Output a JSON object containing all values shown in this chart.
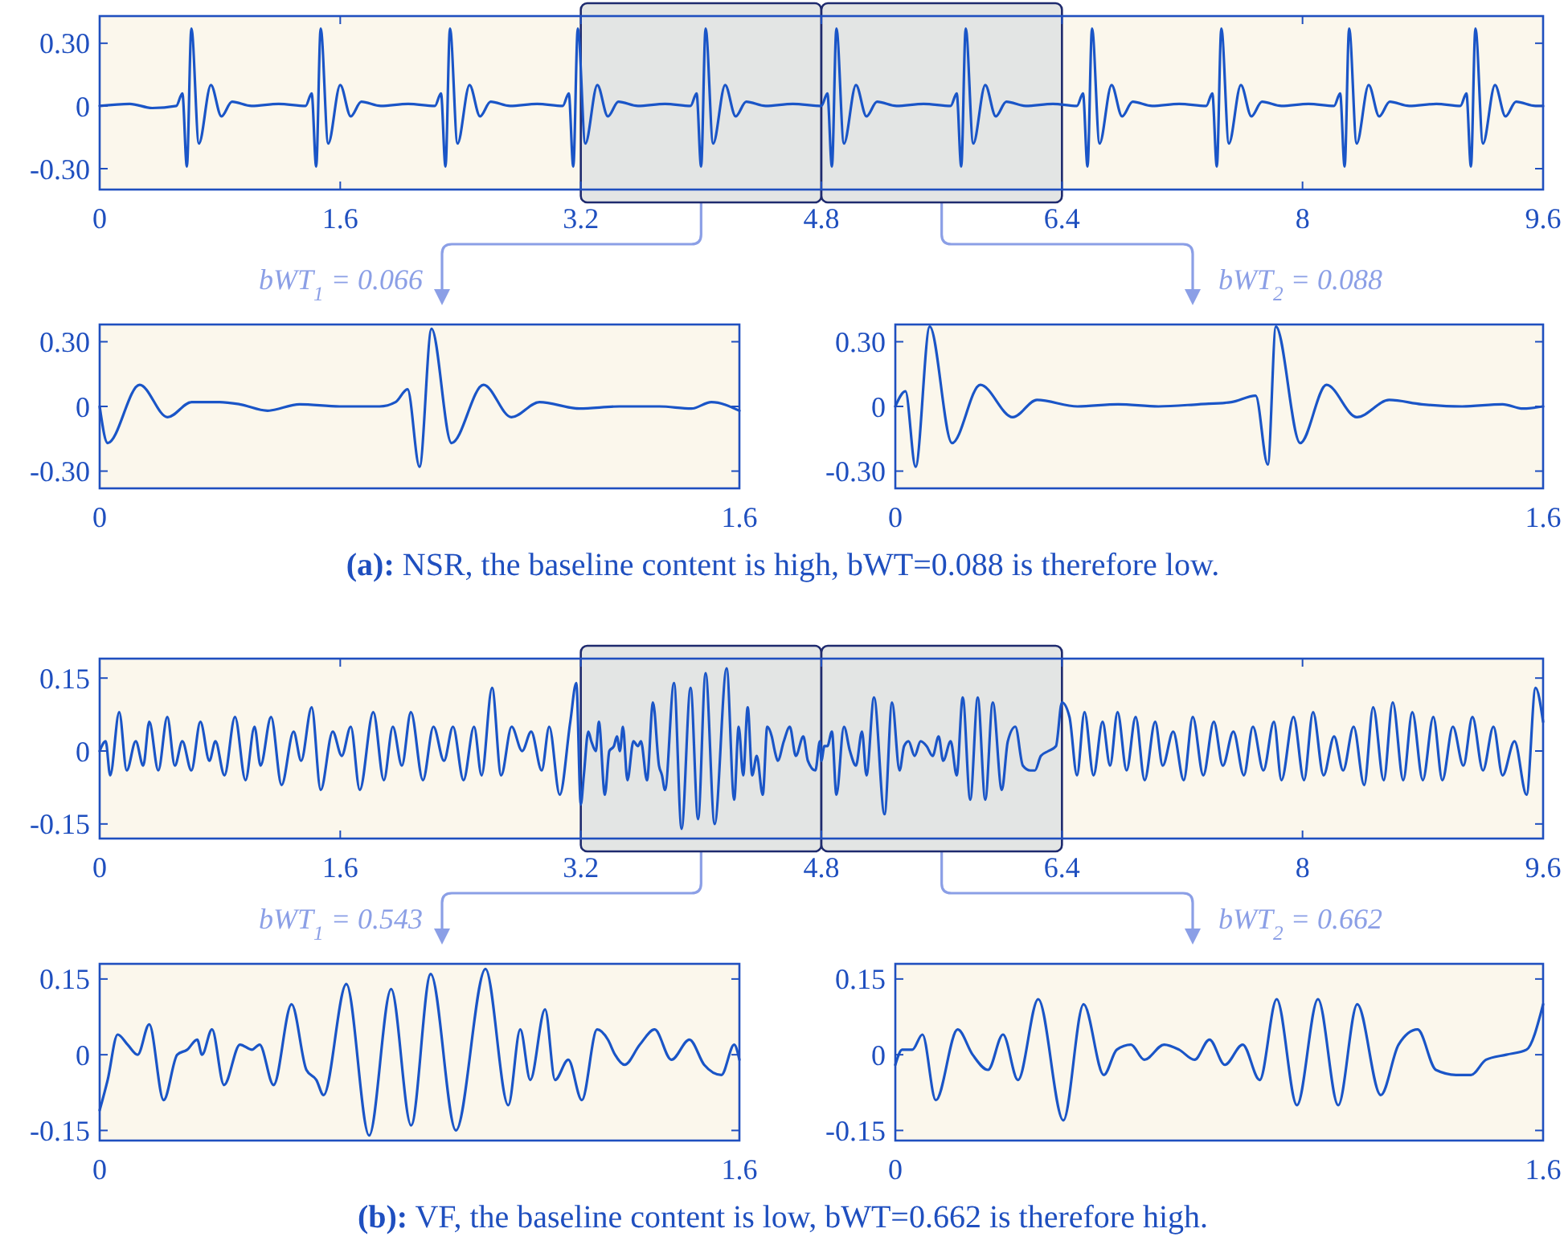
{
  "chart_data": [
    {
      "type": "line",
      "xlim": [
        0,
        9.6
      ],
      "ylim": [
        -0.4,
        0.43
      ],
      "xticks": [
        0,
        1.6,
        3.2,
        4.8,
        6.4,
        8,
        9.6
      ],
      "yticks": [
        {
          "value": 0.3,
          "label": "0.30"
        },
        {
          "value": 0,
          "label": "0"
        },
        {
          "value": -0.3,
          "label": "-0.30"
        }
      ],
      "series": [
        {
          "color": "#1a55c7",
          "x": [
            0,
            0.2,
            0.35,
            0.51,
            0.55,
            0.58,
            0.61,
            0.66,
            0.74,
            0.81,
            0.88,
            1.01,
            1.19,
            1.37,
            1.41,
            1.44,
            1.47,
            1.52,
            1.6,
            1.67,
            1.74,
            1.87,
            2.05,
            2.23,
            2.27,
            2.3,
            2.33,
            2.38,
            2.46,
            2.53,
            2.6,
            2.73,
            2.91,
            3.08,
            3.12,
            3.15,
            3.18,
            3.23,
            3.31,
            3.38,
            3.45,
            3.58,
            3.76,
            3.93,
            3.97,
            4,
            4.03,
            4.08,
            4.16,
            4.23,
            4.3,
            4.43,
            4.61,
            4.8,
            4.84,
            4.87,
            4.9,
            4.95,
            5.03,
            5.1,
            5.17,
            5.3,
            5.48,
            5.66,
            5.7,
            5.73,
            5.76,
            5.81,
            5.89,
            5.96,
            6.03,
            6.16,
            6.34,
            6.5,
            6.54,
            6.57,
            6.6,
            6.65,
            6.73,
            6.8,
            6.87,
            7,
            7.18,
            7.36,
            7.4,
            7.43,
            7.46,
            7.51,
            7.59,
            7.66,
            7.73,
            7.86,
            8.04,
            8.21,
            8.25,
            8.28,
            8.31,
            8.36,
            8.44,
            8.51,
            8.58,
            8.71,
            8.89,
            9.05,
            9.09,
            9.12,
            9.15,
            9.2,
            9.28,
            9.35,
            9.42,
            9.55,
            9.6
          ],
          "values": [
            0,
            0.01,
            -0.01,
            0,
            0.06,
            -0.29,
            0.37,
            -0.18,
            0.1,
            -0.05,
            0.02,
            0,
            0.01,
            0,
            0.06,
            -0.29,
            0.37,
            -0.18,
            0.1,
            -0.05,
            0.02,
            0,
            0.01,
            0,
            0.06,
            -0.29,
            0.37,
            -0.18,
            0.1,
            -0.05,
            0.02,
            0,
            0.01,
            0,
            0.06,
            -0.29,
            0.37,
            -0.18,
            0.1,
            -0.05,
            0.02,
            0,
            0.01,
            0,
            0.06,
            -0.29,
            0.37,
            -0.18,
            0.1,
            -0.05,
            0.02,
            0,
            0.01,
            0,
            0.06,
            -0.29,
            0.37,
            -0.18,
            0.1,
            -0.05,
            0.02,
            0,
            0.01,
            0,
            0.06,
            -0.29,
            0.37,
            -0.18,
            0.1,
            -0.05,
            0.02,
            0,
            0.01,
            0,
            0.06,
            -0.29,
            0.37,
            -0.18,
            0.1,
            -0.05,
            0.02,
            0,
            0.01,
            0,
            0.06,
            -0.29,
            0.37,
            -0.18,
            0.1,
            -0.05,
            0.02,
            0,
            0.01,
            0,
            0.06,
            -0.29,
            0.37,
            -0.18,
            0.1,
            -0.05,
            0.02,
            0,
            0.01,
            0,
            0.06,
            -0.29,
            0.37,
            -0.18,
            0.1,
            -0.05,
            0.02,
            0,
            0
          ]
        }
      ],
      "bands": [
        {
          "axis": "x",
          "from": 3.2,
          "to": 4.8,
          "color": "#e3e5e4"
        },
        {
          "axis": "x",
          "from": 4.8,
          "to": 6.4,
          "color": "#e3e5e4"
        }
      ]
    },
    {
      "type": "line",
      "title": "bWT$_{1}$ = 0.066",
      "xlim": [
        0,
        1.6
      ],
      "ylim": [
        -0.38,
        0.38
      ],
      "xticks": [
        0,
        1.6
      ],
      "yticks": [
        {
          "value": 0.3,
          "label": "0.30"
        },
        {
          "value": 0,
          "label": "0"
        },
        {
          "value": -0.3,
          "label": "-0.30"
        }
      ],
      "series": [
        {
          "color": "#1a55c7",
          "x": [
            0,
            0.02,
            0.1,
            0.17,
            0.23,
            0.3,
            0.35,
            0.42,
            0.5,
            0.6,
            0.7,
            0.74,
            0.77,
            0.8,
            0.83,
            0.88,
            0.96,
            1.03,
            1.1,
            1.2,
            1.3,
            1.4,
            1.48,
            1.53,
            1.6
          ],
          "values": [
            0,
            -0.17,
            0.1,
            -0.05,
            0.02,
            0.02,
            0.01,
            -0.02,
            0.01,
            0,
            0,
            0.02,
            0.08,
            -0.28,
            0.36,
            -0.17,
            0.1,
            -0.05,
            0.02,
            -0.01,
            0,
            0,
            -0.01,
            0.02,
            -0.02
          ]
        }
      ]
    },
    {
      "type": "line",
      "title": "bWT$_{2}$ = 0.088",
      "xlim": [
        0,
        1.6
      ],
      "ylim": [
        -0.38,
        0.38
      ],
      "xticks": [
        0,
        1.6
      ],
      "yticks": [
        {
          "value": 0.3,
          "label": "0.30"
        },
        {
          "value": 0,
          "label": "0"
        },
        {
          "value": -0.3,
          "label": "-0.30"
        }
      ],
      "annotations": [
        "(a): NSR, the baseline content is high, bWT=0.088 is therefore low."
      ],
      "series": [
        {
          "color": "#1a55c7",
          "x": [
            0,
            0.025,
            0.05,
            0.085,
            0.14,
            0.21,
            0.29,
            0.35,
            0.45,
            0.55,
            0.65,
            0.75,
            0.83,
            0.89,
            0.92,
            0.94,
            1,
            1.065,
            1.14,
            1.22,
            1.3,
            1.4,
            1.5,
            1.55,
            1.6
          ],
          "values": [
            0,
            0.07,
            -0.28,
            0.37,
            -0.17,
            0.1,
            -0.05,
            0.03,
            0,
            0.01,
            0,
            0.01,
            0.02,
            0.05,
            -0.27,
            0.37,
            -0.17,
            0.1,
            -0.05,
            0.03,
            0.01,
            0,
            0.01,
            -0.01,
            0
          ]
        }
      ]
    },
    {
      "type": "line",
      "xlim": [
        0,
        9.6
      ],
      "ylim": [
        -0.18,
        0.19
      ],
      "xticks": [
        0,
        1.6,
        3.2,
        4.8,
        6.4,
        8,
        9.6
      ],
      "yticks": [
        {
          "value": 0.15,
          "label": "0.15"
        },
        {
          "value": 0,
          "label": "0"
        },
        {
          "value": -0.15,
          "label": "-0.15"
        }
      ],
      "series": [
        {
          "color": "#1a55c7",
          "x": [
            0,
            0.04,
            0.07,
            0.13,
            0.18,
            0.24,
            0.29,
            0.33,
            0.39,
            0.45,
            0.5,
            0.55,
            0.61,
            0.67,
            0.73,
            0.77,
            0.83,
            0.9,
            0.97,
            1.03,
            1.07,
            1.14,
            1.21,
            1.29,
            1.34,
            1.41,
            1.47,
            1.55,
            1.61,
            1.67,
            1.73,
            1.82,
            1.89,
            1.95,
            2.01,
            2.07,
            2.15,
            2.22,
            2.29,
            2.35,
            2.42,
            2.49,
            2.54,
            2.61,
            2.67,
            2.74,
            2.81,
            2.87,
            2.94,
            2.99,
            3.06,
            3.13,
            3.17,
            3.2,
            3.22,
            3.25,
            3.27,
            3.3,
            3.32,
            3.36,
            3.39,
            3.42,
            3.44,
            3.46,
            3.48,
            3.51,
            3.55,
            3.58,
            3.6,
            3.64,
            3.68,
            3.72,
            3.74,
            3.76,
            3.82,
            3.87,
            3.93,
            3.98,
            4.03,
            4.09,
            4.17,
            4.22,
            4.25,
            4.28,
            4.31,
            4.34,
            4.37,
            4.41,
            4.44,
            4.47,
            4.49,
            4.51,
            4.55,
            4.59,
            4.63,
            4.68,
            4.71,
            4.76,
            4.79,
            4.8,
            4.82,
            4.84,
            4.87,
            4.9,
            4.95,
            4.99,
            5.03,
            5.07,
            5.1,
            5.15,
            5.22,
            5.27,
            5.32,
            5.35,
            5.38,
            5.42,
            5.46,
            5.5,
            5.54,
            5.58,
            5.61,
            5.66,
            5.7,
            5.74,
            5.79,
            5.84,
            5.89,
            5.94,
            6,
            6.04,
            6.09,
            6.14,
            6.19,
            6.22,
            6.26,
            6.31,
            6.36,
            6.4,
            6.45,
            6.5,
            6.55,
            6.61,
            6.67,
            6.72,
            6.77,
            6.83,
            6.89,
            6.95,
            7.02,
            7.07,
            7.14,
            7.21,
            7.27,
            7.34,
            7.41,
            7.47,
            7.54,
            7.61,
            7.67,
            7.74,
            7.81,
            7.86,
            7.94,
            8.01,
            8.07,
            8.14,
            8.21,
            8.27,
            8.34,
            8.41,
            8.47,
            8.54,
            8.6,
            8.67,
            8.73,
            8.8,
            8.87,
            8.93,
            9,
            9.07,
            9.13,
            9.2,
            9.27,
            9.33,
            9.41,
            9.49,
            9.55,
            9.6
          ],
          "values": [
            0,
            0.02,
            -0.05,
            0.08,
            -0.04,
            0.02,
            -0.03,
            0.06,
            -0.04,
            0.07,
            -0.03,
            0.02,
            -0.04,
            0.06,
            -0.02,
            0.02,
            -0.05,
            0.07,
            -0.06,
            0.05,
            -0.03,
            0.07,
            -0.07,
            0.04,
            -0.02,
            0.09,
            -0.08,
            0.04,
            -0.01,
            0.05,
            -0.08,
            0.08,
            -0.06,
            0.05,
            -0.03,
            0.08,
            -0.06,
            0.05,
            -0.02,
            0.05,
            -0.06,
            0.05,
            -0.05,
            0.13,
            -0.05,
            0.05,
            0,
            0.04,
            -0.04,
            0.05,
            -0.09,
            0.06,
            0.14,
            -0.11,
            -0.05,
            0.04,
            0.02,
            0,
            0.06,
            -0.09,
            0,
            0.01,
            0.03,
            0,
            0.05,
            -0.06,
            0.02,
            0.01,
            0.02,
            -0.06,
            0.1,
            -0.03,
            -0.05,
            -0.08,
            0.14,
            -0.16,
            0.13,
            -0.14,
            0.16,
            -0.15,
            0.17,
            -0.1,
            0.05,
            -0.05,
            0.09,
            -0.05,
            -0.01,
            -0.09,
            0.05,
            0.03,
            0,
            -0.02,
            0.02,
            0.05,
            -0.01,
            0.03,
            -0.02,
            -0.04,
            0.02,
            -0.02,
            0.01,
            0.01,
            0.04,
            -0.09,
            0.05,
            0,
            -0.03,
            0.04,
            -0.05,
            0.11,
            -0.13,
            0.1,
            -0.04,
            0.01,
            0.02,
            -0.01,
            0.02,
            0.01,
            -0.01,
            0.03,
            -0.02,
            0.02,
            -0.05,
            0.11,
            -0.1,
            0.11,
            -0.1,
            0.1,
            -0.08,
            0.02,
            0.05,
            -0.03,
            -0.04,
            -0.04,
            -0.01,
            0,
            0.01,
            0.1,
            0.07,
            -0.05,
            0.08,
            -0.05,
            0.06,
            -0.03,
            0.08,
            -0.04,
            0.07,
            -0.06,
            0.06,
            -0.03,
            0.04,
            -0.06,
            0.07,
            -0.05,
            0.06,
            -0.03,
            0.04,
            -0.05,
            0.05,
            -0.04,
            0.06,
            -0.06,
            0.07,
            -0.06,
            0.08,
            -0.05,
            0.03,
            -0.04,
            0.05,
            -0.07,
            0.09,
            -0.06,
            0.1,
            -0.06,
            0.08,
            -0.06,
            0.07,
            -0.06,
            0.05,
            -0.03,
            0.07,
            -0.04,
            0.05,
            -0.05,
            0.02,
            -0.09,
            0.13,
            0.06
          ]
        }
      ],
      "bands": [
        {
          "axis": "x",
          "from": 3.2,
          "to": 4.8,
          "color": "#e3e5e4"
        },
        {
          "axis": "x",
          "from": 4.8,
          "to": 6.4,
          "color": "#e3e5e4"
        }
      ]
    },
    {
      "type": "line",
      "title": "bWT$_{1}$ = 0.543",
      "xlim": [
        0,
        1.6
      ],
      "ylim": [
        -0.17,
        0.18
      ],
      "xticks": [
        0,
        1.6
      ],
      "yticks": [
        {
          "value": 0.15,
          "label": "0.15"
        },
        {
          "value": 0,
          "label": "0"
        },
        {
          "value": -0.15,
          "label": "-0.15"
        }
      ],
      "series": [
        {
          "color": "#1a55c7",
          "x": [
            0,
            0.02,
            0.045,
            0.07,
            0.095,
            0.124,
            0.16,
            0.194,
            0.219,
            0.244,
            0.256,
            0.281,
            0.311,
            0.351,
            0.381,
            0.4,
            0.435,
            0.48,
            0.517,
            0.542,
            0.56,
            0.617,
            0.674,
            0.729,
            0.779,
            0.828,
            0.891,
            0.965,
            1.022,
            1.052,
            1.077,
            1.114,
            1.139,
            1.172,
            1.206,
            1.244,
            1.271,
            1.289,
            1.313,
            1.351,
            1.388,
            1.43,
            1.475,
            1.512,
            1.555,
            1.587,
            1.6
          ],
          "values": [
            -0.11,
            -0.05,
            0.04,
            0.02,
            0,
            0.06,
            -0.09,
            0,
            0.01,
            0.03,
            0,
            0.05,
            -0.06,
            0.02,
            0.01,
            0.02,
            -0.06,
            0.1,
            -0.03,
            -0.05,
            -0.08,
            0.14,
            -0.16,
            0.13,
            -0.14,
            0.16,
            -0.15,
            0.17,
            -0.1,
            0.05,
            -0.05,
            0.09,
            -0.05,
            -0.01,
            -0.09,
            0.05,
            0.03,
            0,
            -0.02,
            0.02,
            0.05,
            -0.01,
            0.03,
            -0.02,
            -0.04,
            0.02,
            -0.01
          ]
        }
      ]
    },
    {
      "type": "line",
      "title": "bWT$_{2}$ = 0.662",
      "xlim": [
        0,
        1.6
      ],
      "ylim": [
        -0.17,
        0.18
      ],
      "xticks": [
        0,
        1.6
      ],
      "yticks": [
        {
          "value": 0.15,
          "label": "0.15"
        },
        {
          "value": 0,
          "label": "0"
        },
        {
          "value": -0.15,
          "label": "-0.15"
        }
      ],
      "annotations": [
        "(b): VF, the baseline content is low, bWT=0.662 is therefore high."
      ],
      "series": [
        {
          "color": "#1a55c7",
          "x": [
            0,
            0.017,
            0.042,
            0.067,
            0.1,
            0.154,
            0.191,
            0.229,
            0.266,
            0.303,
            0.353,
            0.415,
            0.465,
            0.515,
            0.547,
            0.582,
            0.615,
            0.664,
            0.701,
            0.739,
            0.776,
            0.814,
            0.858,
            0.9,
            0.942,
            0.992,
            1.044,
            1.094,
            1.141,
            1.199,
            1.243,
            1.29,
            1.335,
            1.385,
            1.422,
            1.459,
            1.509,
            1.559,
            1.6
          ],
          "values": [
            -0.02,
            0.01,
            0.01,
            0.04,
            -0.09,
            0.05,
            0,
            -0.03,
            0.04,
            -0.05,
            0.11,
            -0.13,
            0.1,
            -0.04,
            0.01,
            0.02,
            -0.01,
            0.02,
            0.01,
            -0.01,
            0.03,
            -0.02,
            0.02,
            -0.05,
            0.11,
            -0.1,
            0.11,
            -0.1,
            0.1,
            -0.08,
            0.02,
            0.05,
            -0.03,
            -0.04,
            -0.04,
            -0.01,
            0,
            0.01,
            0.1
          ]
        }
      ]
    }
  ]
}
